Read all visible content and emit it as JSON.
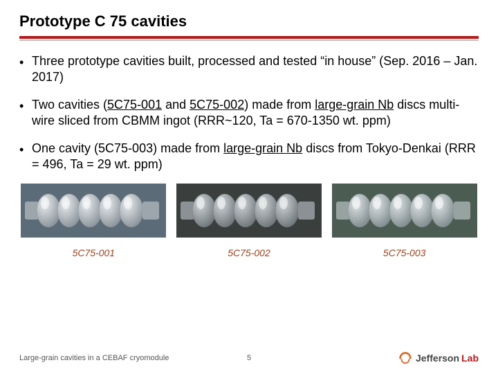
{
  "title": "Prototype C 75 cavities",
  "rule": {
    "red": "#b31b1b",
    "gray": "#bfbfbf"
  },
  "bullets": {
    "b1": "Three prototype cavities built, processed and tested “in house” (Sep. 2016 – Jan. 2017)",
    "b2_a": "Two cavities (",
    "b2_link1": "5C75-001",
    "b2_b": " and ",
    "b2_link2": "5C75-002",
    "b2_c": ") made from ",
    "b2_link3": "large-grain Nb",
    "b2_d": " discs multi-wire sliced from CBMM ingot (RRR~120, Ta = 670-1350 wt. ppm)",
    "b3_a": "One cavity (5C75-003) made from ",
    "b3_link1": "large-grain Nb",
    "b3_b": " discs from Tokyo-Denkai (RRR = 496, Ta = 29 wt. ppm)"
  },
  "figures": {
    "items": [
      {
        "caption": "5C75-001",
        "bg": "#5b6b78",
        "metal_hi": "#e8ecef",
        "metal_lo": "#8a9299",
        "flange": "#9da6ad"
      },
      {
        "caption": "5C75-002",
        "bg": "#3a3f3d",
        "metal_hi": "#ced4d7",
        "metal_lo": "#6e7579",
        "flange": "#8b9195"
      },
      {
        "caption": "5C75-003",
        "bg": "#4b5c53",
        "metal_hi": "#dfe4e6",
        "metal_lo": "#7e8a8c",
        "flange": "#97a3a1"
      }
    ],
    "caption_color": "#9a3f1a",
    "caption_fontsize": 14,
    "caption_style": "italic"
  },
  "footer": {
    "left": "Large-grain cavities in a CEBAF cryomodule",
    "page": "5",
    "logo": {
      "swirl_color": "#d86b2a",
      "text1": "Jefferson",
      "text2": "Lab",
      "text1_color": "#444444",
      "text2_color": "#b31b1b"
    }
  }
}
